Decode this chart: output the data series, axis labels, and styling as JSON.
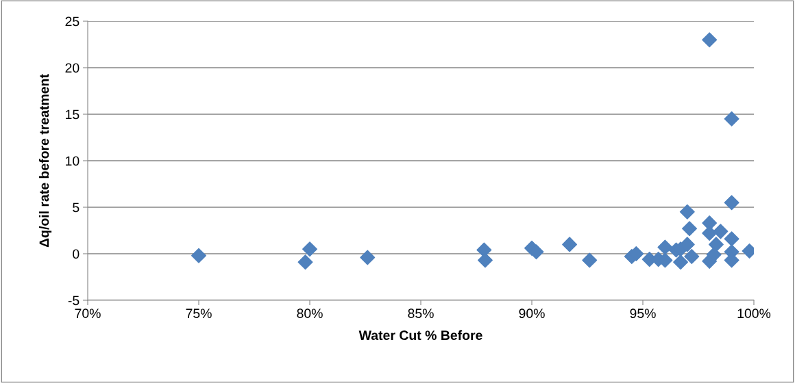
{
  "chart_data": {
    "type": "scatter",
    "xlabel": "Water Cut % Before",
    "ylabel": "Δq/oil rate before treatment",
    "x": [
      0.75,
      0.798,
      0.8,
      0.826,
      0.8785,
      0.879,
      0.9,
      0.902,
      0.917,
      0.926,
      0.945,
      0.947,
      0.953,
      0.957,
      0.96,
      0.96,
      0.965,
      0.967,
      0.967,
      0.97,
      0.97,
      0.971,
      0.972,
      0.98,
      0.98,
      0.98,
      0.983,
      0.985,
      0.982,
      0.98,
      0.99,
      0.99,
      0.99,
      0.99,
      0.99,
      0.998
    ],
    "series": [
      {
        "color": "#4f81bd",
        "values": [
          -0.2,
          -0.9,
          0.5,
          -0.4,
          0.4,
          -0.7,
          0.6,
          0.2,
          1.0,
          -0.7,
          -0.3,
          0.0,
          -0.6,
          -0.6,
          -0.7,
          0.7,
          0.4,
          0.5,
          -0.9,
          1.0,
          4.5,
          2.7,
          -0.3,
          3.3,
          2.2,
          -0.8,
          1.0,
          2.4,
          -0.1,
          23.0,
          14.5,
          5.5,
          1.6,
          0.2,
          -0.7,
          0.3
        ]
      }
    ],
    "xlim": [
      0.7,
      1.0
    ],
    "xticks": [
      {
        "value": 0.7,
        "label": "70%"
      },
      {
        "value": 0.75,
        "label": "75%"
      },
      {
        "value": 0.8,
        "label": "80%"
      },
      {
        "value": 0.85,
        "label": "85%"
      },
      {
        "value": 0.9,
        "label": "90%"
      },
      {
        "value": 0.95,
        "label": "95%"
      },
      {
        "value": 1.0,
        "label": "100%"
      }
    ],
    "ylim": [
      -5,
      25
    ],
    "yticks": [
      -5,
      0,
      5,
      10,
      15,
      20,
      25
    ],
    "grid": "y",
    "marker": "diamond",
    "legend": false
  }
}
